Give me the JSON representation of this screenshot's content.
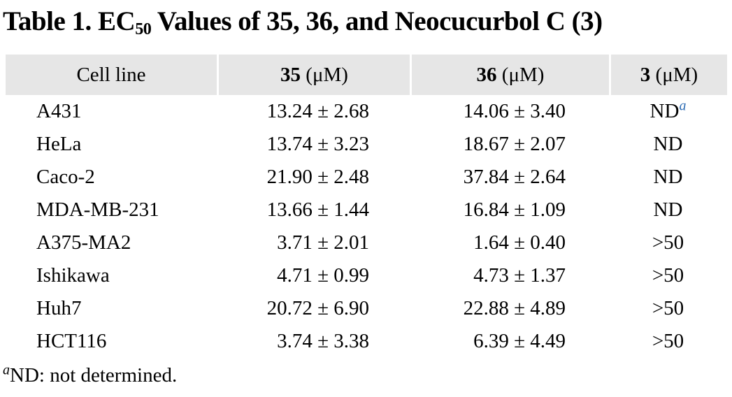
{
  "title": {
    "part1": "Table 1. EC",
    "sub": "50",
    "part2": " Values of 35, 36, and Neocucurbol C (3)"
  },
  "header": {
    "cell_line": "Cell line",
    "col35": {
      "bold": "35",
      "unit": " (μM)"
    },
    "col36": {
      "bold": "36",
      "unit": " (μM)"
    },
    "col3": {
      "bold": "3",
      "unit": " (μM)"
    }
  },
  "rows": [
    {
      "cell_line": "A431",
      "v35": "13.24 ± 2.68",
      "v36": "14.06 ± 3.40",
      "v3": "ND",
      "v3_sup": "a"
    },
    {
      "cell_line": "HeLa",
      "v35": "13.74 ± 3.23",
      "v36": "18.67 ± 2.07",
      "v3": "ND"
    },
    {
      "cell_line": "Caco-2",
      "v35": "21.90 ± 2.48",
      "v36": "37.84 ± 2.64",
      "v3": "ND"
    },
    {
      "cell_line": "MDA-MB-231",
      "v35": "13.66 ± 1.44",
      "v36": "16.84 ± 1.09",
      "v3": "ND"
    },
    {
      "cell_line": "A375-MA2",
      "v35": "3.71 ± 2.01",
      "v36": "1.64 ± 0.40",
      "v3": ">50"
    },
    {
      "cell_line": "Ishikawa",
      "v35": "4.71 ± 0.99",
      "v36": "4.73 ± 1.37",
      "v3": ">50"
    },
    {
      "cell_line": "Huh7",
      "v35": "20.72 ± 6.90",
      "v36": "22.88 ± 4.89",
      "v3": ">50"
    },
    {
      "cell_line": "HCT116",
      "v35": "3.74 ± 3.38",
      "v36": "6.39 ± 4.49",
      "v3": ">50"
    }
  ],
  "footnote": {
    "marker": "a",
    "text": "ND: not determined."
  },
  "colors": {
    "header_bg": "#e6e6e6",
    "superscript_blue": "#2e6db4"
  }
}
